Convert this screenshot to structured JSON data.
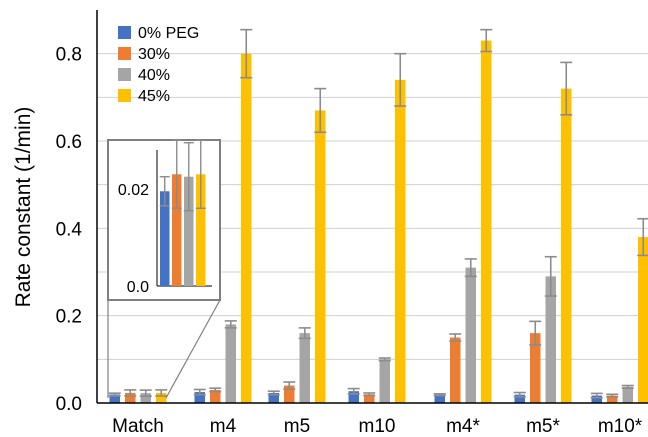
{
  "chart_data": {
    "type": "bar",
    "ylabel": "Rate constant (1/min)",
    "ylim": [
      0,
      0.9
    ],
    "yticks": [
      "0.0",
      "0.2",
      "0.4",
      "0.6",
      "0.8"
    ],
    "grid": true,
    "legend_position": "top-left",
    "categories": [
      "Match",
      "m4",
      "m5",
      "m10",
      "m4*",
      "m5*",
      "m10*"
    ],
    "series": [
      {
        "name": "0% PEG",
        "color": "#4472c4",
        "values": [
          0.0195,
          0.025,
          0.023,
          0.027,
          0.019,
          0.019,
          0.017
        ],
        "errors": [
          0.003,
          0.006,
          0.004,
          0.006,
          0.002,
          0.005,
          0.005
        ]
      },
      {
        "name": "30%",
        "color": "#ed7d31",
        "values": [
          0.023,
          0.03,
          0.04,
          0.02,
          0.15,
          0.16,
          0.017
        ],
        "errors": [
          0.007,
          0.004,
          0.008,
          0.003,
          0.008,
          0.027,
          0.003
        ]
      },
      {
        "name": "40%",
        "color": "#a5a5a5",
        "values": [
          0.0225,
          0.18,
          0.16,
          0.1,
          0.31,
          0.29,
          0.037
        ],
        "errors": [
          0.007,
          0.008,
          0.012,
          0.003,
          0.02,
          0.045,
          0.003
        ]
      },
      {
        "name": "45%",
        "color": "#ffc000",
        "values": [
          0.023,
          0.8,
          0.67,
          0.74,
          0.83,
          0.72,
          0.38
        ],
        "errors": [
          0.007,
          0.055,
          0.05,
          0.06,
          0.025,
          0.06,
          0.042
        ]
      }
    ],
    "inset": {
      "category": "Match",
      "ylim": [
        0,
        0.028
      ],
      "yticks": [
        "0.0",
        "0.02"
      ],
      "values": [
        0.0195,
        0.023,
        0.0225,
        0.023
      ],
      "errors": [
        0.003,
        0.007,
        0.007,
        0.007
      ]
    }
  }
}
